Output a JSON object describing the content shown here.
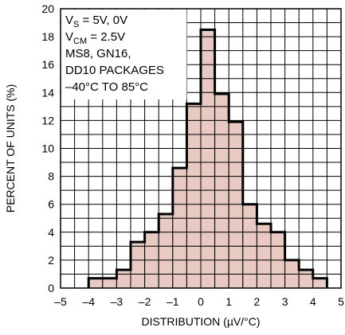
{
  "chart_data": {
    "type": "bar",
    "title": "",
    "xlabel": "DISTRIBUTION (µV/°C)",
    "ylabel": "PERCENT OF UNITS (%)",
    "xlim": [
      -5,
      5
    ],
    "ylim": [
      0,
      20
    ],
    "x_ticks": [
      "–5",
      "–4",
      "–3",
      "–2",
      "–1",
      "0",
      "1",
      "2",
      "3",
      "4",
      "5"
    ],
    "y_ticks": [
      "0",
      "2",
      "4",
      "6",
      "8",
      "10",
      "12",
      "14",
      "16",
      "18",
      "20"
    ],
    "bin_width": 0.5,
    "bins": [
      {
        "start": -4.0,
        "value": 0.7
      },
      {
        "start": -3.5,
        "value": 0.7
      },
      {
        "start": -3.0,
        "value": 1.3
      },
      {
        "start": -2.5,
        "value": 3.3
      },
      {
        "start": -2.0,
        "value": 4.0
      },
      {
        "start": -1.5,
        "value": 5.3
      },
      {
        "start": -1.0,
        "value": 8.6
      },
      {
        "start": -0.5,
        "value": 13.2
      },
      {
        "start": 0.0,
        "value": 18.5
      },
      {
        "start": 0.5,
        "value": 13.9
      },
      {
        "start": 1.0,
        "value": 11.9
      },
      {
        "start": 1.5,
        "value": 6.0
      },
      {
        "start": 2.0,
        "value": 4.6
      },
      {
        "start": 2.5,
        "value": 4.0
      },
      {
        "start": 3.0,
        "value": 2.0
      },
      {
        "start": 3.5,
        "value": 1.3
      },
      {
        "start": 4.0,
        "value": 0.7
      }
    ],
    "grid": true,
    "colors": {
      "fill": "#e5c1b8",
      "outline": "#000000",
      "grid": "#000000"
    },
    "annotation": {
      "position": "top-left",
      "lines": [
        {
          "main": "V",
          "sub": "S",
          "rest": " = 5V, 0V"
        },
        {
          "main": "V",
          "sub": "CM",
          "rest": " = 2.5V"
        },
        {
          "main": "MS8, GN16,",
          "sub": "",
          "rest": ""
        },
        {
          "main": "DD10 PACKAGES",
          "sub": "",
          "rest": ""
        },
        {
          "main": "–40°C TO 85°C",
          "sub": "",
          "rest": ""
        }
      ]
    }
  }
}
